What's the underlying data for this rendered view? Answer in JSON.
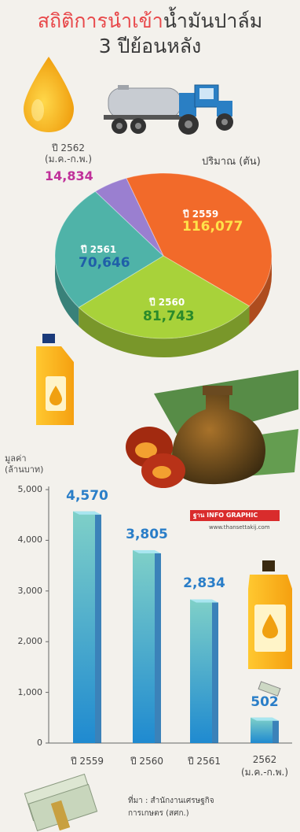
{
  "title": {
    "highlight": "สถิติการนำเข้า",
    "rest": "น้ำมันปาล์ม",
    "line2": "3 ปีย้อนหลัง"
  },
  "logo": {
    "brand": "ฐาน",
    "suffix": "INFO GRAPHIC",
    "url": "www.thansettakij.com"
  },
  "source": {
    "line1": "ที่มา : สำนักงานเศรษฐกิจ",
    "line2": "การเกษตร (สศก.)"
  },
  "colors": {
    "title_highlight": "#e8484a",
    "bar_value": "#2a7ec8",
    "pie_2562_value": "#c0309a",
    "pie_2561_value": "#1f5fa8",
    "pie_2560_value": "#2a8a2a",
    "pie_2559_value": "#ffe24a"
  },
  "chart_data": [
    {
      "type": "pie",
      "title": "ปริมาณ (ตัน)",
      "slices": [
        {
          "year": "ปี 2559",
          "label": "116,077",
          "value": 116077,
          "color": "#f26a2a"
        },
        {
          "year": "ปี 2560",
          "label": "81,743",
          "value": 81743,
          "color": "#a8d23a"
        },
        {
          "year": "ปี 2561",
          "label": "70,646",
          "value": 70646,
          "color": "#4fb3a8"
        },
        {
          "year_line1": "ปี 2562",
          "year_line2": "(ม.ค.-ก.พ.)",
          "label": "14,834",
          "value": 14834,
          "color": "#9a7fd0"
        }
      ]
    },
    {
      "type": "bar",
      "ylabel_line1": "มูลค่า",
      "ylabel_line2": "(ล้านบาท)",
      "ylim": [
        0,
        5000
      ],
      "yticks": [
        "0",
        "1,000",
        "2,000",
        "3,000",
        "4,000",
        "5,000"
      ],
      "categories": [
        "ปี 2559",
        "ปี 2560",
        "ปี 2561",
        "2562"
      ],
      "category_sub": [
        "",
        "",
        "",
        "(ม.ค.-ก.พ.)"
      ],
      "values": [
        4570,
        3805,
        2834,
        502
      ],
      "value_labels": [
        "4,570",
        "3,805",
        "2,834",
        "502"
      ]
    }
  ]
}
